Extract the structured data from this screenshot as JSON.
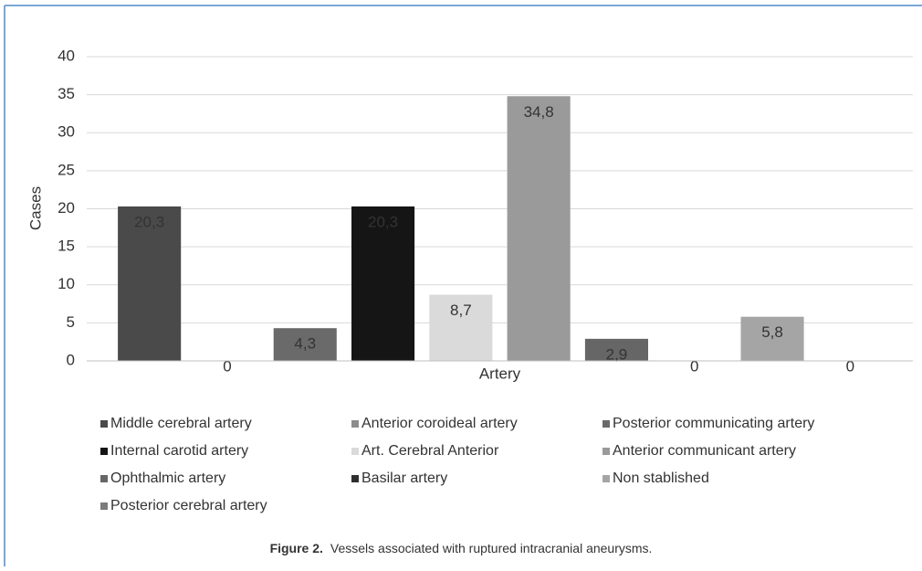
{
  "chart_data": {
    "type": "bar",
    "y_label": "Cases",
    "categories": [
      "Artery"
    ],
    "series": [
      {
        "name": "Middle cerebral artery",
        "color": "#4a4a4a",
        "values": [
          20.3
        ],
        "value_labels": [
          "20,3"
        ]
      },
      {
        "name": "Anterior coroideal artery",
        "color": "#8c8c8c",
        "values": [
          0
        ]
      },
      {
        "name": "Posterior communicating artery",
        "color": "#6a6a6a",
        "values": [
          4.3
        ],
        "value_labels": [
          "4,3"
        ]
      },
      {
        "name": "Internal carotid artery",
        "color": "#151515",
        "values": [
          20.3
        ],
        "value_labels": [
          "20,3"
        ]
      },
      {
        "name": "Art. Cerebral Anterior",
        "color": "#dadada",
        "values": [
          8.7
        ],
        "value_labels": [
          "8,7"
        ]
      },
      {
        "name": "Anterior communicant artery",
        "color": "#9a9a9a",
        "values": [
          34.8
        ],
        "value_labels": [
          "34,8"
        ]
      },
      {
        "name": "Ophthalmic artery",
        "color": "#666666",
        "values": [
          2.9
        ],
        "value_labels": [
          "2,9"
        ]
      },
      {
        "name": "Basilar artery",
        "color": "#2e2e2e",
        "values": [
          0
        ]
      },
      {
        "name": "Non stablished",
        "color": "#a5a5a5",
        "values": [
          5.8
        ],
        "value_labels": [
          "5,8"
        ]
      },
      {
        "name": "Posterior cerebral artery",
        "color": "#7c7c7c",
        "values": [
          0
        ]
      }
    ],
    "ylim": [
      0,
      40
    ],
    "yticks": [
      0,
      5,
      10,
      15,
      20,
      25,
      30,
      35,
      40
    ],
    "grid": true
  },
  "caption": {
    "label": "Figure 2.",
    "text": "Vessels associated with ruptured intracranial aneurysms."
  }
}
